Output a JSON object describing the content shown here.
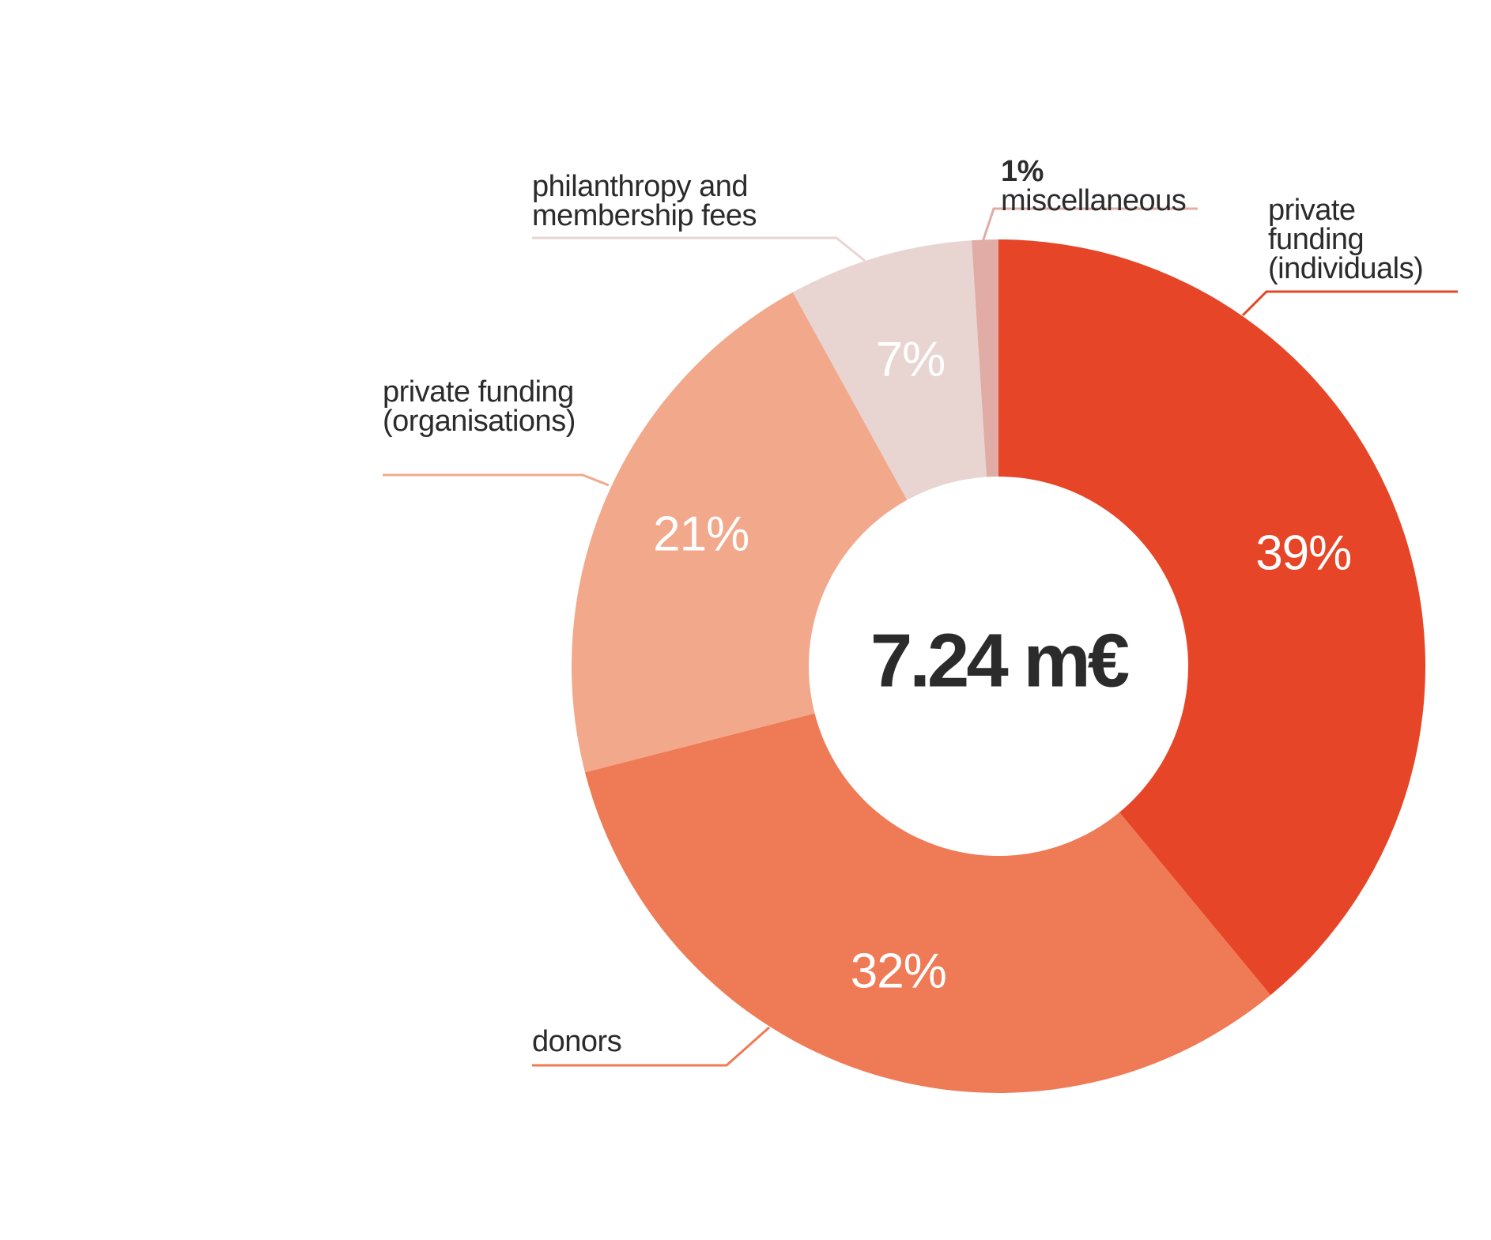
{
  "chart_data": {
    "type": "donut",
    "center_label": "7.24 m€",
    "categories": [
      "private funding (individuals)",
      "donors",
      "private funding (organisations)",
      "philanthropy and membership fees",
      "miscellaneous"
    ],
    "values": [
      39,
      32,
      21,
      7,
      1
    ],
    "value_labels": [
      "39%",
      "32%",
      "21%",
      "7%",
      "1%"
    ],
    "colors": [
      "#e64527",
      "#ef7a56",
      "#f2a88a",
      "#e8d5d2",
      "#e0aca5"
    ]
  }
}
